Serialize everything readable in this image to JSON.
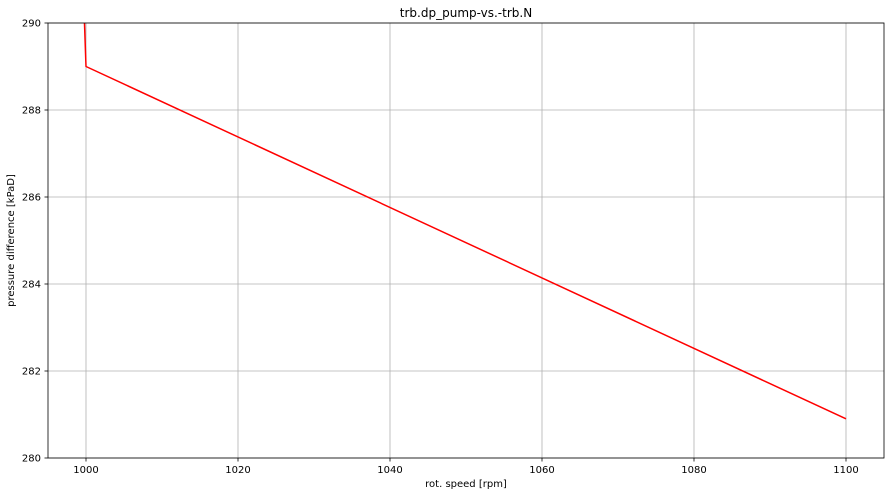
{
  "chart_data": {
    "type": "line",
    "title": "trb.dp_pump-vs.-trb.N",
    "xlabel": "rot. speed [rpm]",
    "ylabel": "pressure difference [kPaD]",
    "xlim": [
      995,
      1105
    ],
    "ylim": [
      280,
      290
    ],
    "xticks": [
      1000,
      1020,
      1040,
      1060,
      1080,
      1100
    ],
    "yticks": [
      280,
      282,
      284,
      286,
      288,
      290
    ],
    "grid": true,
    "legend": "none",
    "series": [
      {
        "color": "#ff0000",
        "x": [
          999.8,
          1000,
          1100
        ],
        "y": [
          290.0,
          289.0,
          280.9
        ]
      }
    ]
  }
}
